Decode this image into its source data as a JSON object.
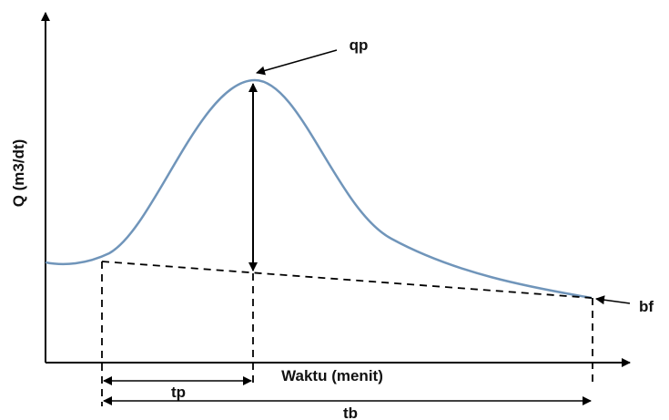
{
  "axes": {
    "y_label": "Q (m3/dt)",
    "x_label": "Waktu (menit)"
  },
  "annotations": {
    "peak": "qp",
    "baseflow": "bf",
    "time_to_peak": "tp",
    "base_time": "tb"
  }
}
